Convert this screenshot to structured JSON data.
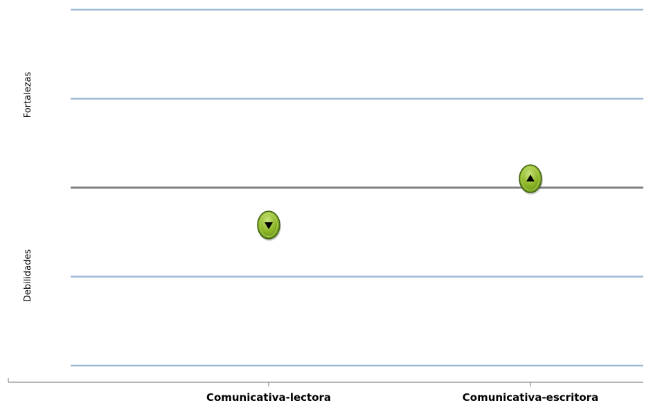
{
  "chart_data": {
    "type": "scatter",
    "categories": [
      "Comunicativa-lectora",
      "Comunicativa-escritora"
    ],
    "points": [
      {
        "category": "Comunicativa-lectora",
        "value": -0.42,
        "direction": "down"
      },
      {
        "category": "Comunicativa-escritora",
        "value": 0.1,
        "direction": "up"
      }
    ],
    "ylim": [
      -2,
      2
    ],
    "gridlines": [
      2,
      1,
      0,
      -1,
      -2
    ],
    "baseline": 0,
    "side_labels": {
      "top": "Fortalezas",
      "bottom": "Debilidades"
    },
    "grid": true,
    "marker_style": "green-circle-with-triangle"
  },
  "colors": {
    "gridline": "#9DB8D5",
    "baseline": "#7F7F7F",
    "axis": "#8C8C8C",
    "marker_fill": "#8DB526",
    "marker_edge": "#3D5F10",
    "marker_highlight": "#C6E37A",
    "triangle": "#000000",
    "text": "#000000"
  }
}
